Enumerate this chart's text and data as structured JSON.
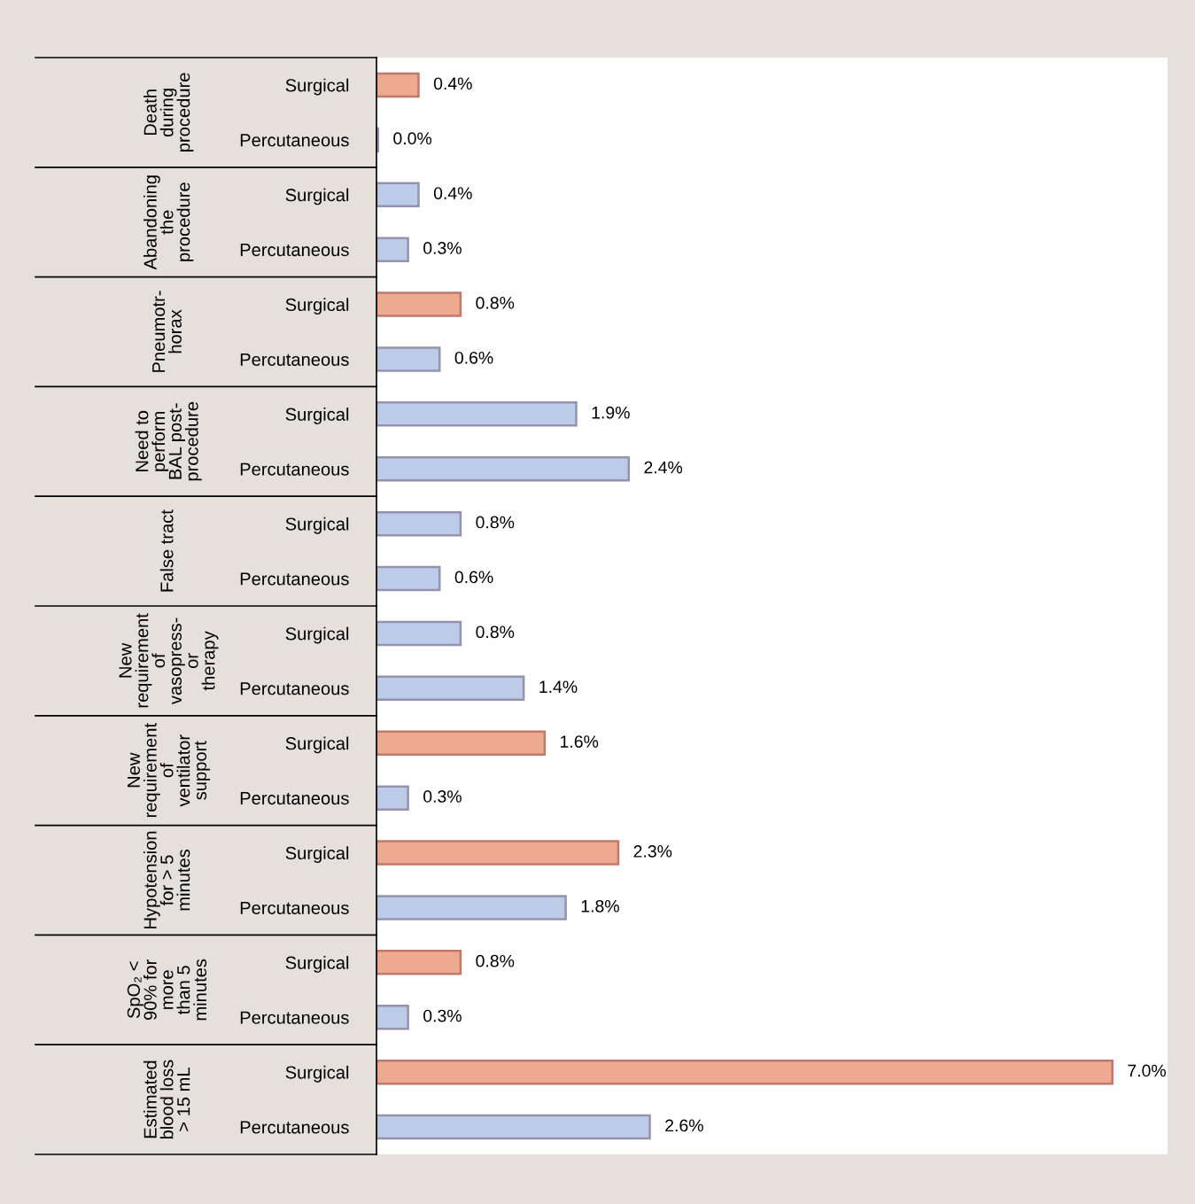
{
  "chart_data": {
    "type": "bar",
    "orientation": "horizontal",
    "categories": [
      "Surgical",
      "Percutaneous",
      "Surgical",
      "Percutaneous",
      "Surgical",
      "Percutaneous",
      "Surgical",
      "Percutaneous",
      "Surgical",
      "Percutaneous",
      "Surgical",
      "Percutaneous",
      "Surgical",
      "Percutaneous",
      "Surgical",
      "Percutaneous",
      "Surgical",
      "Percutaneous",
      "Surgical",
      "Percutaneous"
    ],
    "values": [
      0.4,
      0.0,
      0.4,
      0.3,
      0.8,
      0.6,
      1.9,
      2.4,
      0.8,
      0.6,
      0.8,
      1.4,
      1.6,
      0.3,
      2.3,
      1.8,
      0.8,
      0.3,
      7.0,
      2.6
    ],
    "value_labels": [
      "0.4%",
      "0.0%",
      "0.4%",
      "0.3%",
      "0.8%",
      "0.6%",
      "1.9%",
      "2.4%",
      "0.8%",
      "0.6%",
      "0.8%",
      "1.4%",
      "1.6%",
      "0.3%",
      "2.3%",
      "1.8%",
      "0.8%",
      "0.3%",
      "7.0%",
      "2.6%"
    ],
    "colors": [
      "#eeaa90",
      "#bccbe8",
      "#bccbe8",
      "#bccbe8",
      "#eeaa90",
      "#bccbe8",
      "#bccbe8",
      "#bccbe8",
      "#bccbe8",
      "#bccbe8",
      "#bccbe8",
      "#bccbe8",
      "#eeaa90",
      "#bccbe8",
      "#eeaa90",
      "#bccbe8",
      "#eeaa90",
      "#bccbe8",
      "#eeaa90",
      "#bccbe8"
    ],
    "annotations": [
      "Death\nduring\nprocedure",
      "Abandoning\nthe\nprocedure",
      "Pneumotr-\nhorax",
      "Need to\nperform\nBAL post-\nprocedure",
      "False tract",
      "New\nrequirement\nof\nvasopress-\nor\ntherapy",
      "New\nrequirement\nof\nventilator\nsupport",
      "Hypotension\nfor > 5\nminutes",
      "SpO₂ <\n90% for\nmore\nthan 5\nminutes",
      "Estimated\nblood loss\n> 15 mL"
    ],
    "grid": false,
    "legend": false
  }
}
